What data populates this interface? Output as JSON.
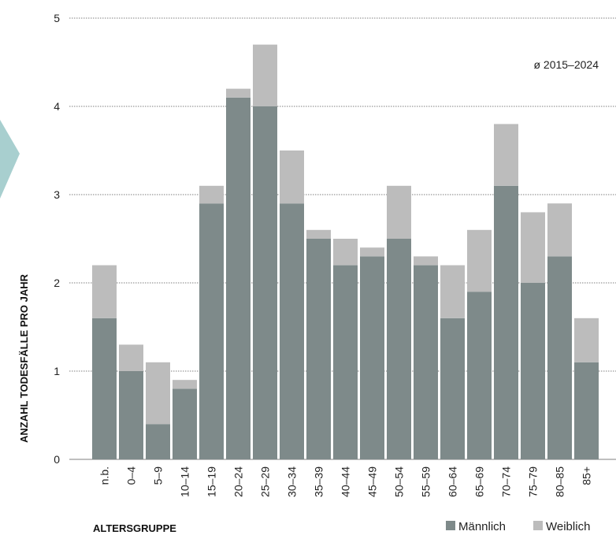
{
  "chart_data": {
    "type": "bar",
    "stacked": true,
    "categories": [
      "n.b.",
      "0–4",
      "5–9",
      "10–14",
      "15–19",
      "20–24",
      "25–29",
      "30–34",
      "35–39",
      "40–44",
      "45–49",
      "50–54",
      "55–59",
      "60–64",
      "65–69",
      "70–74",
      "75–79",
      "80–85",
      "85+"
    ],
    "series": [
      {
        "name": "Männlich",
        "color": "#7e8a8a",
        "values": [
          1.6,
          1.0,
          0.4,
          0.8,
          2.9,
          4.1,
          4.0,
          2.9,
          2.5,
          2.2,
          2.3,
          2.5,
          2.2,
          1.6,
          1.9,
          3.1,
          2.0,
          2.3,
          1.1
        ]
      },
      {
        "name": "Weiblich",
        "color": "#bcbcbc",
        "values": [
          0.6,
          0.3,
          0.7,
          0.1,
          0.2,
          0.1,
          0.7,
          0.6,
          0.1,
          0.3,
          0.1,
          0.6,
          0.1,
          0.6,
          0.7,
          0.7,
          0.8,
          0.6,
          0.5
        ]
      }
    ],
    "xlabel": "ALTERSGRUPPE",
    "ylabel": "ANZAHL TODESFÄLLE PRO JAHR",
    "ylim": [
      0,
      5
    ],
    "yticks": [
      0,
      1,
      2,
      3,
      4,
      5
    ],
    "grid": true,
    "annotation": "ø 2015–2024",
    "legend_position": "bottom-right",
    "decoration_color": "#a8cfcf"
  }
}
